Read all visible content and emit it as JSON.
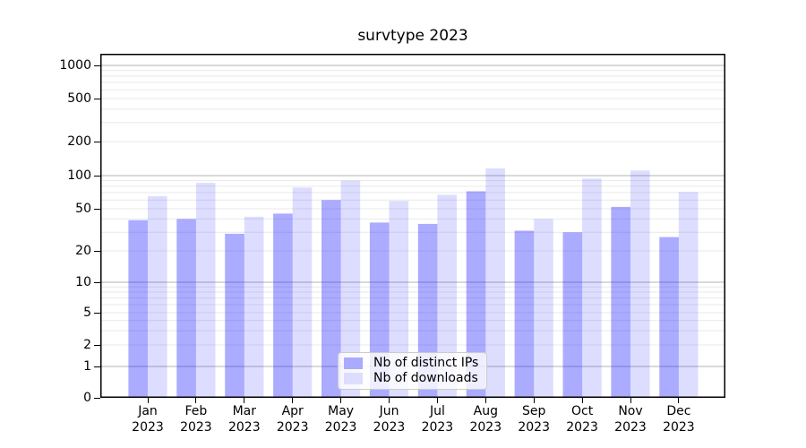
{
  "title": "survtype 2023",
  "legend": {
    "items": [
      {
        "label": "Nb of distinct IPs",
        "color": "#aaaaff"
      },
      {
        "label": "Nb of downloads",
        "color": "#ddddff"
      }
    ]
  },
  "colors": {
    "ips_bar": "rgba(0,0,255,0.33)",
    "downloads_bar": "rgba(0,0,255,0.135)",
    "grid_major": "#b3b3b3",
    "grid_minor": "#e9e9e9",
    "axis": "#000000",
    "legend_border": "#cccccc"
  },
  "yaxis": {
    "tick_labels": [
      "0",
      "1",
      "2",
      "5",
      "10",
      "20",
      "50",
      "100",
      "200",
      "500",
      "1000"
    ]
  },
  "chart_data": {
    "type": "bar",
    "title": "survtype 2023",
    "categories": [
      "Jan 2023",
      "Feb 2023",
      "Mar 2023",
      "Apr 2023",
      "May 2023",
      "Jun 2023",
      "Jul 2023",
      "Aug 2023",
      "Sep 2023",
      "Oct 2023",
      "Nov 2023",
      "Dec 2023"
    ],
    "series": [
      {
        "name": "Nb of distinct IPs",
        "values": [
          39,
          40,
          29,
          45,
          60,
          37,
          36,
          72,
          31,
          30,
          52,
          27
        ]
      },
      {
        "name": "Nb of downloads",
        "values": [
          65,
          86,
          42,
          78,
          90,
          59,
          67,
          116,
          40,
          94,
          111,
          71
        ]
      }
    ],
    "xlabel": "",
    "ylabel": "",
    "yscale": "symlog",
    "yticks": [
      0,
      1,
      2,
      5,
      10,
      20,
      50,
      100,
      200,
      500,
      1000
    ],
    "ylim": [
      0,
      1400
    ],
    "grid": true,
    "legend_position": "lower center"
  }
}
